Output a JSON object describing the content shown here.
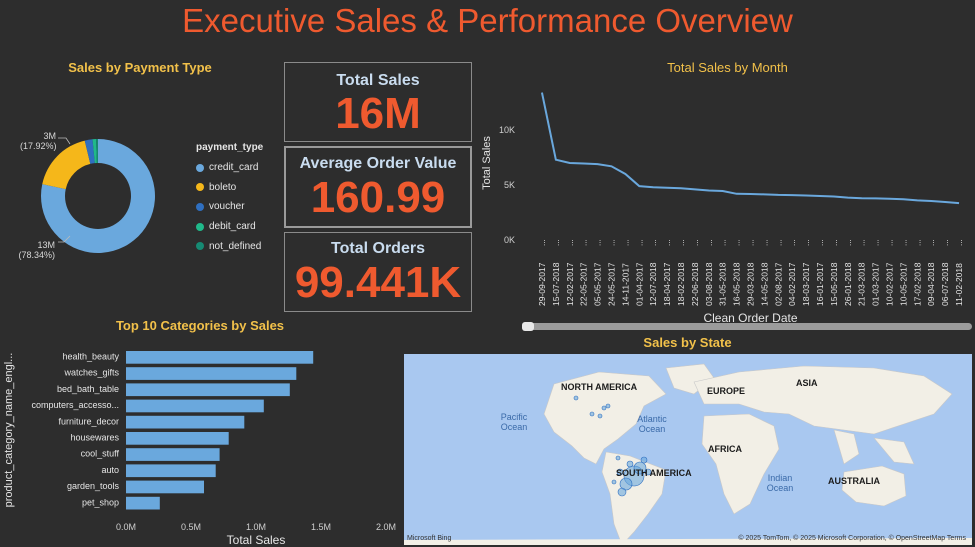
{
  "title": "Executive Sales & Performance Overview",
  "donut": {
    "title": "Sales by Payment Type",
    "legend_title": "payment_type",
    "slices": [
      {
        "name": "credit_card",
        "pct": 78.34,
        "color": "#6aa8dd"
      },
      {
        "name": "boleto",
        "pct": 17.92,
        "color": "#f5b71a"
      },
      {
        "name": "voucher",
        "pct": 2.2,
        "color": "#2f6fc0"
      },
      {
        "name": "debit_card",
        "pct": 1.0,
        "color": "#20b98a"
      },
      {
        "name": "not_defined",
        "pct": 0.54,
        "color": "#168a73"
      }
    ],
    "label_top_value": "3M",
    "label_top_pct": "(17.92%)",
    "label_bottom_value": "13M",
    "label_bottom_pct": "(78.34%)"
  },
  "kpis": {
    "total_sales_label": "Total Sales",
    "total_sales_value": "16M",
    "aov_label": "Average Order Value",
    "aov_value": "160.99",
    "orders_label": "Total Orders",
    "orders_value": "99.441K"
  },
  "line_chart": {
    "title": "Total Sales by Month",
    "ylabel": "Total Sales",
    "xlabel": "Clean Order Date",
    "yticks": [
      "0K",
      "5K",
      "10K"
    ],
    "ylim": [
      0,
      14000
    ],
    "dates": [
      "29-09-2017",
      "15-07-2018",
      "12-02-2017",
      "22-05-2017",
      "05-05-2017",
      "24-05-2017",
      "14-11-2017",
      "01-04-2017",
      "12-07-2018",
      "18-04-2017",
      "18-02-2018",
      "22-06-2018",
      "03-08-2018",
      "31-05-2018",
      "16-05-2018",
      "29-03-2018",
      "14-05-2018",
      "02-08-2017",
      "04-02-2017",
      "18-03-2017",
      "16-01-2017",
      "15-05-2018",
      "26-01-2018",
      "21-03-2018",
      "01-03-2017",
      "10-02-2017",
      "10-05-2017",
      "17-02-2018",
      "09-04-2018",
      "06-07-2018",
      "11-02-2018"
    ],
    "values": [
      13400,
      7300,
      7000,
      6950,
      6900,
      6700,
      6000,
      4900,
      4800,
      4750,
      4700,
      4600,
      4500,
      4450,
      4200,
      4180,
      4150,
      4100,
      4080,
      4050,
      4000,
      3950,
      3850,
      3800,
      3780,
      3750,
      3700,
      3600,
      3550,
      3450,
      3350
    ]
  },
  "bar_chart": {
    "title": "Top 10 Categories by Sales",
    "ylabel": "product_category_name_engl...",
    "xlabel": "Total Sales",
    "xticks": [
      "0.0M",
      "0.5M",
      "1.0M",
      "1.5M",
      "2.0M"
    ],
    "xlim": [
      0,
      2000000
    ],
    "categories": [
      "health_beauty",
      "watches_gifts",
      "bed_bath_table",
      "computers_accesso...",
      "furniture_decor",
      "housewares",
      "cool_stuff",
      "auto",
      "garden_tools",
      "pet_shop"
    ],
    "values": [
      1440000,
      1310000,
      1260000,
      1060000,
      910000,
      790000,
      720000,
      690000,
      600000,
      260000
    ]
  },
  "map": {
    "title": "Sales by State",
    "continents": [
      "NORTH AMERICA",
      "EUROPE",
      "ASIA",
      "AFRICA",
      "SOUTH AMERICA",
      "AUSTRALIA"
    ],
    "oceans": [
      "Pacific Ocean",
      "Atlantic Ocean",
      "Indian Ocean"
    ],
    "brand": "Microsoft Bing",
    "attribution": "© 2025 TomTom, © 2025 Microsoft Corporation, © OpenStreetMap  Terms"
  }
}
